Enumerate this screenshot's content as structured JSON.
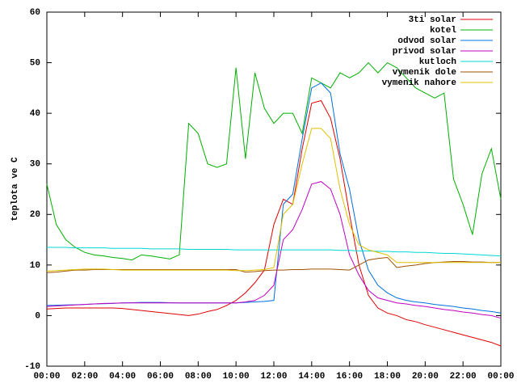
{
  "chart_data": {
    "type": "line",
    "y_label": "teplota ve C",
    "x": [
      0,
      0.5,
      1,
      1.5,
      2,
      2.5,
      3,
      3.5,
      4,
      4.5,
      5,
      5.5,
      6,
      6.5,
      7,
      7.5,
      8,
      8.5,
      9,
      9.5,
      10,
      10.5,
      11,
      11.5,
      12,
      12.5,
      13,
      13.5,
      14,
      14.5,
      15,
      15.5,
      16,
      16.5,
      17,
      17.5,
      18,
      18.5,
      19,
      19.5,
      20,
      20.5,
      21,
      21.5,
      22,
      22.5,
      23,
      23.5,
      24
    ],
    "xlim": [
      0,
      24
    ],
    "xticks": [
      {
        "value": 0,
        "label": "00:00"
      },
      {
        "value": 2,
        "label": "02:00"
      },
      {
        "value": 4,
        "label": "04:00"
      },
      {
        "value": 6,
        "label": "06:00"
      },
      {
        "value": 8,
        "label": "08:00"
      },
      {
        "value": 10,
        "label": "10:00"
      },
      {
        "value": 12,
        "label": "12:00"
      },
      {
        "value": 14,
        "label": "14:00"
      },
      {
        "value": 16,
        "label": "16:00"
      },
      {
        "value": 18,
        "label": "18:00"
      },
      {
        "value": 20,
        "label": "20:00"
      },
      {
        "value": 22,
        "label": "22:00"
      },
      {
        "value": 24,
        "label": "00:00"
      }
    ],
    "ylim": [
      -10,
      60
    ],
    "yticks": [
      -10,
      0,
      10,
      20,
      30,
      40,
      50,
      60
    ],
    "grid": false,
    "legend": "top-right",
    "series": [
      {
        "name": "3ti solar",
        "color": "#e00000",
        "values": [
          1.3,
          1.4,
          1.5,
          1.5,
          1.5,
          1.5,
          1.5,
          1.5,
          1.4,
          1.2,
          1,
          0.8,
          0.6,
          0.4,
          0.2,
          0,
          0.3,
          0.8,
          1.2,
          2,
          3,
          4.5,
          6.5,
          9,
          18,
          23,
          22,
          33,
          42,
          42.5,
          39,
          31,
          20,
          10,
          4,
          1.5,
          0.5,
          0,
          -0.8,
          -1.2,
          -1.8,
          -2.3,
          -2.8,
          -3.3,
          -3.8,
          -4.3,
          -4.8,
          -5.3,
          -6
        ]
      },
      {
        "name": "kotel",
        "color": "#00b000",
        "values": [
          26,
          18,
          15,
          13.5,
          12.5,
          12,
          11.8,
          11.5,
          11.3,
          11,
          12,
          11.8,
          11.5,
          11.2,
          12,
          38,
          36,
          30,
          29.3,
          30,
          49,
          31,
          48,
          41,
          38,
          40,
          40,
          36,
          47,
          46,
          45,
          48,
          47,
          48,
          50,
          48,
          50,
          49,
          47,
          45,
          44,
          43,
          44,
          27,
          22,
          16,
          28,
          33,
          23
        ]
      },
      {
        "name": "odvod solar",
        "color": "#0070e0",
        "values": [
          2,
          2.05,
          2.1,
          2.15,
          2.2,
          2.3,
          2.35,
          2.4,
          2.5,
          2.55,
          2.6,
          2.6,
          2.6,
          2.55,
          2.5,
          2.5,
          2.5,
          2.5,
          2.5,
          2.5,
          2.5,
          2.6,
          2.7,
          2.8,
          3,
          22,
          24,
          35,
          45,
          46,
          44,
          32,
          25,
          15,
          9,
          6,
          4.5,
          3.5,
          3,
          2.7,
          2.5,
          2.2,
          2,
          1.8,
          1.5,
          1.3,
          1,
          0.8,
          0.5
        ]
      },
      {
        "name": "privod solar",
        "color": "#c000c0",
        "values": [
          1.8,
          1.9,
          2,
          2.1,
          2.2,
          2.3,
          2.4,
          2.45,
          2.5,
          2.5,
          2.5,
          2.5,
          2.5,
          2.5,
          2.5,
          2.5,
          2.5,
          2.5,
          2.5,
          2.5,
          2.5,
          2.7,
          3,
          4,
          6,
          15,
          17,
          21,
          26,
          26.5,
          25,
          20,
          12,
          8,
          5,
          3.5,
          3,
          2.5,
          2.3,
          2,
          1.8,
          1.5,
          1.2,
          1,
          0.7,
          0.5,
          0.2,
          0,
          -0.5
        ]
      },
      {
        "name": "kutloch",
        "color": "#00d8d8",
        "values": [
          13.5,
          13.5,
          13.5,
          13.4,
          13.4,
          13.4,
          13.4,
          13.3,
          13.3,
          13.3,
          13.3,
          13.2,
          13.2,
          13.2,
          13.2,
          13.1,
          13.1,
          13.1,
          13.1,
          13.1,
          13,
          13,
          13,
          13,
          13,
          13,
          13,
          13,
          13,
          13,
          13,
          12.9,
          12.9,
          12.8,
          12.8,
          12.7,
          12.7,
          12.6,
          12.6,
          12.5,
          12.5,
          12.4,
          12.3,
          12.3,
          12.2,
          12.1,
          12,
          11.9,
          11.8
        ]
      },
      {
        "name": "vymenik dole",
        "color": "#a05000",
        "values": [
          8.5,
          8.6,
          8.8,
          9,
          9,
          9.1,
          9.1,
          9.1,
          9.1,
          9.1,
          9.1,
          9.1,
          9.1,
          9.1,
          9.1,
          9.1,
          9.1,
          9.1,
          9.1,
          9.1,
          9.1,
          8.6,
          8.7,
          8.9,
          9,
          9,
          9.1,
          9.1,
          9.2,
          9.2,
          9.2,
          9.1,
          9,
          10,
          11,
          11.3,
          11.5,
          9.5,
          9.8,
          10,
          10.3,
          10.5,
          10.6,
          10.7,
          10.7,
          10.6,
          10.6,
          10.5,
          10.5
        ]
      },
      {
        "name": "vymenik nahore",
        "color": "#e0c000",
        "values": [
          8.8,
          8.9,
          9,
          9.1,
          9.2,
          9.2,
          9.2,
          9.1,
          9,
          9,
          9,
          9,
          9,
          9,
          9,
          9,
          9,
          9,
          9,
          9,
          8.9,
          8.9,
          9,
          9.1,
          9.5,
          20,
          22,
          30,
          37,
          37,
          35,
          25,
          18,
          14,
          13,
          12.5,
          12,
          10.5,
          10.5,
          10.5,
          10.5,
          10.5,
          10.5,
          10.5,
          10.5,
          10.5,
          10.5,
          10.5,
          10.5
        ]
      }
    ]
  }
}
